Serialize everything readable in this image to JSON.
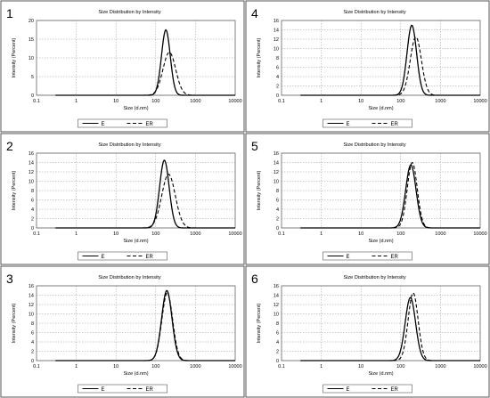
{
  "chart_data": [
    {
      "panel_number": "1",
      "type": "line",
      "title": "Size Distribution by Intensity",
      "xlabel": "Size (d.nm)",
      "ylabel": "Intensity (Percent)",
      "x_scale": "log",
      "xlim": [
        0.1,
        10000
      ],
      "ylim": [
        0,
        20
      ],
      "y_ticks": [
        0,
        5,
        10,
        15,
        20
      ],
      "x_tick_labels": [
        "0.1",
        "1",
        "10",
        "100",
        "1000",
        "10000"
      ],
      "grid": true,
      "legend_position": "bottom",
      "series": [
        {
          "name": "E",
          "style": "solid",
          "peak": 180,
          "sigma_log10": 0.11,
          "height": 17.5,
          "min": 0.3,
          "max": 10000
        },
        {
          "name": "ER",
          "style": "dashed",
          "peak": 220,
          "sigma_log10": 0.16,
          "height": 11.5,
          "min": 0.3,
          "max": 10000
        }
      ]
    },
    {
      "panel_number": "2",
      "type": "line",
      "title": "Size Distribution by Intensity",
      "xlabel": "Size (d.nm)",
      "ylabel": "Intensity (Percent)",
      "x_scale": "log",
      "xlim": [
        0.1,
        10000
      ],
      "ylim": [
        0,
        16
      ],
      "y_ticks": [
        0,
        2,
        4,
        6,
        8,
        10,
        12,
        14,
        16
      ],
      "x_tick_labels": [
        "0.1",
        "1",
        "10",
        "100",
        "1000",
        "10000"
      ],
      "grid": true,
      "legend_position": "bottom",
      "series": [
        {
          "name": "E",
          "style": "solid",
          "peak": 165,
          "sigma_log10": 0.12,
          "height": 14.5,
          "min": 0.3,
          "max": 10000
        },
        {
          "name": "ER",
          "style": "dashed",
          "peak": 210,
          "sigma_log10": 0.17,
          "height": 11.5,
          "min": 0.3,
          "max": 10000
        }
      ]
    },
    {
      "panel_number": "3",
      "type": "line",
      "title": "Size Distribution by Intensity",
      "xlabel": "Size (d.nm)",
      "ylabel": "Intensity (Percent)",
      "x_scale": "log",
      "xlim": [
        0.1,
        10000
      ],
      "ylim": [
        0,
        16
      ],
      "y_ticks": [
        0,
        2,
        4,
        6,
        8,
        10,
        12,
        14,
        16
      ],
      "x_tick_labels": [
        "0.1",
        "1",
        "10",
        "100",
        "1000",
        "10000"
      ],
      "grid": true,
      "legend_position": "bottom",
      "series": [
        {
          "name": "E",
          "style": "solid",
          "peak": 190,
          "sigma_log10": 0.13,
          "height": 15,
          "min": 0.3,
          "max": 10000
        },
        {
          "name": "ER",
          "style": "dashed",
          "peak": 195,
          "sigma_log10": 0.135,
          "height": 14.5,
          "min": 0.3,
          "max": 10000
        }
      ]
    },
    {
      "panel_number": "4",
      "type": "line",
      "title": "Size Distribution by Intensity",
      "xlabel": "Size (d.nm)",
      "ylabel": "Intensity (Percent)",
      "x_scale": "log",
      "xlim": [
        0.1,
        10000
      ],
      "ylim": [
        0,
        16
      ],
      "y_ticks": [
        0,
        2,
        4,
        6,
        8,
        10,
        12,
        14,
        16
      ],
      "x_tick_labels": [
        "0.1",
        "1",
        "10",
        "100",
        "1000",
        "10000"
      ],
      "grid": true,
      "legend_position": "bottom",
      "series": [
        {
          "name": "E",
          "style": "solid",
          "peak": 190,
          "sigma_log10": 0.12,
          "height": 15,
          "min": 0.3,
          "max": 10000
        },
        {
          "name": "ER",
          "style": "dashed",
          "peak": 240,
          "sigma_log10": 0.14,
          "height": 12.5,
          "min": 0.3,
          "max": 10000
        }
      ]
    },
    {
      "panel_number": "5",
      "type": "line",
      "title": "Size Distribution by Intensity",
      "xlabel": "Size (d.nm)",
      "ylabel": "Intensity (Percent)",
      "x_scale": "log",
      "xlim": [
        0.1,
        10000
      ],
      "ylim": [
        0,
        16
      ],
      "y_ticks": [
        0,
        2,
        4,
        6,
        8,
        10,
        12,
        14,
        16
      ],
      "x_tick_labels": [
        "0.1",
        "1",
        "10",
        "100",
        "1000",
        "10000"
      ],
      "grid": true,
      "legend_position": "bottom",
      "series": [
        {
          "name": "E",
          "style": "solid",
          "peak": 180,
          "sigma_log10": 0.13,
          "height": 13.5,
          "min": 0.3,
          "max": 10000
        },
        {
          "name": "ER",
          "style": "dashed",
          "peak": 195,
          "sigma_log10": 0.125,
          "height": 14,
          "min": 0.3,
          "max": 10000
        }
      ]
    },
    {
      "panel_number": "6",
      "type": "line",
      "title": "Size Distribution by Intensity",
      "xlabel": "Size (d.nm)",
      "ylabel": "Intensity (Percent)",
      "x_scale": "log",
      "xlim": [
        0.1,
        10000
      ],
      "ylim": [
        0,
        16
      ],
      "y_ticks": [
        0,
        2,
        4,
        6,
        8,
        10,
        12,
        14,
        16
      ],
      "x_tick_labels": [
        "0.1",
        "1",
        "10",
        "100",
        "1000",
        "10000"
      ],
      "grid": true,
      "legend_position": "bottom",
      "series": [
        {
          "name": "E",
          "style": "solid",
          "peak": 175,
          "sigma_log10": 0.13,
          "height": 13.5,
          "min": 0.3,
          "max": 10000
        },
        {
          "name": "ER",
          "style": "dashed",
          "peak": 205,
          "sigma_log10": 0.125,
          "height": 14.5,
          "min": 0.3,
          "max": 10000
        }
      ]
    }
  ]
}
